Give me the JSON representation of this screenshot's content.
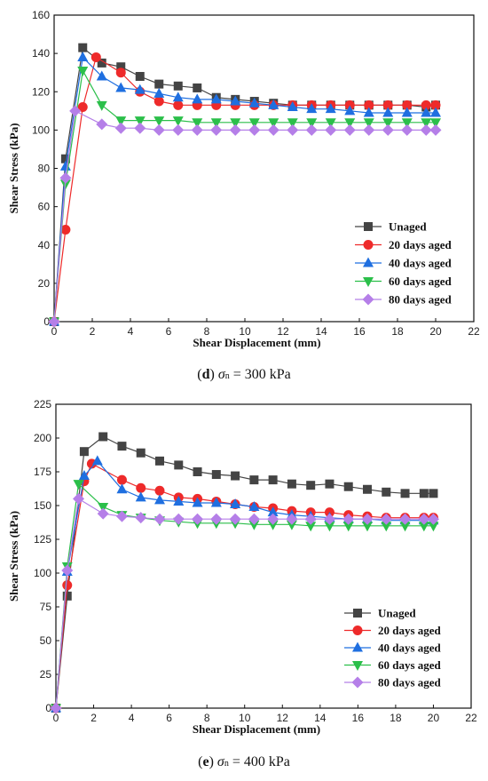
{
  "chart_data": [
    {
      "type": "line",
      "xlabel": "Shear Displacement (mm)",
      "ylabel": "Shear Stress (kPa)",
      "xlim": [
        0,
        22
      ],
      "ylim": [
        0,
        160
      ],
      "xticks": [
        0,
        2,
        4,
        6,
        8,
        10,
        12,
        14,
        16,
        18,
        20,
        22
      ],
      "yticks": [
        0,
        20,
        40,
        60,
        80,
        100,
        120,
        140,
        160
      ],
      "legend_position": "bottom-right",
      "caption": {
        "letter": "d",
        "symbol": "σ",
        "subscript": "n",
        "value": "= 300 kPa"
      },
      "series": [
        {
          "name": "Unaged",
          "color": "#444444",
          "marker": "square",
          "x": [
            0,
            0.6,
            1.5,
            2.5,
            3.5,
            4.5,
            5.5,
            6.5,
            7.5,
            8.5,
            9.5,
            10.5,
            11.5,
            12.5,
            13.5,
            14.5,
            15.5,
            16.5,
            17.5,
            18.5,
            19.5,
            20
          ],
          "y": [
            0,
            85,
            143,
            135,
            133,
            128,
            124,
            123,
            122,
            117,
            116,
            115,
            114,
            113,
            113,
            113,
            113,
            113,
            113,
            113,
            112,
            113
          ]
        },
        {
          "name": "20 days aged",
          "color": "#ee2a2a",
          "marker": "circle",
          "x": [
            0,
            0.6,
            1.5,
            2.2,
            3.5,
            4.5,
            5.5,
            6.5,
            7.5,
            8.5,
            9.5,
            10.5,
            11.5,
            12.5,
            13.5,
            14.5,
            15.5,
            16.5,
            17.5,
            18.5,
            19.5,
            20
          ],
          "y": [
            0,
            48,
            112,
            138,
            130,
            120,
            115,
            113,
            113,
            113,
            113,
            113,
            113,
            113,
            113,
            113,
            113,
            113,
            113,
            113,
            113,
            113
          ]
        },
        {
          "name": "40 days aged",
          "color": "#1f6fe0",
          "marker": "triangle-up",
          "x": [
            0,
            0.6,
            1.5,
            2.5,
            3.5,
            4.5,
            5.5,
            6.5,
            7.5,
            8.5,
            9.5,
            10.5,
            11.5,
            12.5,
            13.5,
            14.5,
            15.5,
            16.5,
            17.5,
            18.5,
            19.5,
            20
          ],
          "y": [
            0,
            81,
            138,
            128,
            122,
            121,
            119,
            117,
            116,
            116,
            115,
            114,
            113,
            112,
            111,
            111,
            110,
            109,
            109,
            109,
            109,
            109
          ]
        },
        {
          "name": "60 days aged",
          "color": "#2bbf4a",
          "marker": "triangle-down",
          "x": [
            0,
            0.6,
            1.5,
            2.5,
            3.5,
            4.5,
            5.5,
            6.5,
            7.5,
            8.5,
            9.5,
            10.5,
            11.5,
            12.5,
            13.5,
            14.5,
            15.5,
            16.5,
            17.5,
            18.5,
            19.5,
            20
          ],
          "y": [
            0,
            72,
            131,
            113,
            105,
            105,
            105,
            105,
            104,
            104,
            104,
            104,
            104,
            104,
            104,
            104,
            104,
            104,
            104,
            104,
            104,
            104
          ]
        },
        {
          "name": "80 days aged",
          "color": "#b57fe8",
          "marker": "diamond",
          "x": [
            0,
            0.6,
            1.1,
            2.5,
            3.5,
            4.5,
            5.5,
            6.5,
            7.5,
            8.5,
            9.5,
            10.5,
            11.5,
            12.5,
            13.5,
            14.5,
            15.5,
            16.5,
            17.5,
            18.5,
            19.5,
            20
          ],
          "y": [
            0,
            75,
            110,
            103,
            101,
            101,
            100,
            100,
            100,
            100,
            100,
            100,
            100,
            100,
            100,
            100,
            100,
            100,
            100,
            100,
            100,
            100
          ]
        }
      ]
    },
    {
      "type": "line",
      "xlabel": "Shear Displacement (mm)",
      "ylabel": "Shear Stress (kPa)",
      "xlim": [
        0,
        22
      ],
      "ylim": [
        0,
        225
      ],
      "xticks": [
        0,
        2,
        4,
        6,
        8,
        10,
        12,
        14,
        16,
        18,
        20,
        22
      ],
      "yticks": [
        0,
        25,
        50,
        75,
        100,
        125,
        150,
        175,
        200,
        225
      ],
      "legend_position": "bottom-right",
      "caption": {
        "letter": "e",
        "symbol": "σ",
        "subscript": "n",
        "value": "= 400 kPa"
      },
      "series": [
        {
          "name": "Unaged",
          "color": "#444444",
          "marker": "square",
          "x": [
            0,
            0.6,
            1.5,
            2.5,
            3.5,
            4.5,
            5.5,
            6.5,
            7.5,
            8.5,
            9.5,
            10.5,
            11.5,
            12.5,
            13.5,
            14.5,
            15.5,
            16.5,
            17.5,
            18.5,
            19.5,
            20
          ],
          "y": [
            0,
            83,
            190,
            201,
            194,
            189,
            183,
            180,
            175,
            173,
            172,
            169,
            169,
            166,
            165,
            166,
            164,
            162,
            160,
            159,
            159,
            159
          ]
        },
        {
          "name": "20 days aged",
          "color": "#ee2a2a",
          "marker": "circle",
          "x": [
            0,
            0.6,
            1.5,
            1.9,
            3.5,
            4.5,
            5.5,
            6.5,
            7.5,
            8.5,
            9.5,
            10.5,
            11.5,
            12.5,
            13.5,
            14.5,
            15.5,
            16.5,
            17.5,
            18.5,
            19.5,
            20
          ],
          "y": [
            0,
            91,
            168,
            181,
            169,
            163,
            161,
            156,
            155,
            153,
            151,
            149,
            148,
            146,
            145,
            145,
            143,
            142,
            141,
            141,
            141,
            141
          ]
        },
        {
          "name": "40 days aged",
          "color": "#1f6fe0",
          "marker": "triangle-up",
          "x": [
            0,
            0.6,
            1.5,
            2.2,
            3.5,
            4.5,
            5.5,
            6.5,
            7.5,
            8.5,
            9.5,
            10.5,
            11.5,
            12.5,
            13.5,
            14.5,
            15.5,
            16.5,
            17.5,
            18.5,
            19.5,
            20
          ],
          "y": [
            0,
            101,
            172,
            183,
            162,
            156,
            154,
            153,
            152,
            152,
            151,
            149,
            145,
            143,
            142,
            141,
            140,
            140,
            139,
            139,
            139,
            139
          ]
        },
        {
          "name": "60 days aged",
          "color": "#2bbf4a",
          "marker": "triangle-down",
          "x": [
            0,
            0.6,
            1.2,
            2.5,
            3.5,
            4.5,
            5.5,
            6.5,
            7.5,
            8.5,
            9.5,
            10.5,
            11.5,
            12.5,
            13.5,
            14.5,
            15.5,
            16.5,
            17.5,
            18.5,
            19.5,
            20
          ],
          "y": [
            0,
            105,
            166,
            149,
            143,
            141,
            139,
            138,
            137,
            137,
            137,
            136,
            136,
            136,
            135,
            135,
            135,
            135,
            135,
            135,
            135,
            135
          ]
        },
        {
          "name": "80 days aged",
          "color": "#b57fe8",
          "marker": "diamond",
          "x": [
            0,
            0.6,
            1.2,
            2.5,
            3.5,
            4.5,
            5.5,
            6.5,
            7.5,
            8.5,
            9.5,
            10.5,
            11.5,
            12.5,
            13.5,
            14.5,
            15.5,
            16.5,
            17.5,
            18.5,
            19.5,
            20
          ],
          "y": [
            0,
            102,
            155,
            144,
            142,
            141,
            140,
            140,
            140,
            140,
            140,
            140,
            140,
            140,
            140,
            140,
            140,
            140,
            140,
            140,
            140,
            140
          ]
        }
      ]
    }
  ]
}
